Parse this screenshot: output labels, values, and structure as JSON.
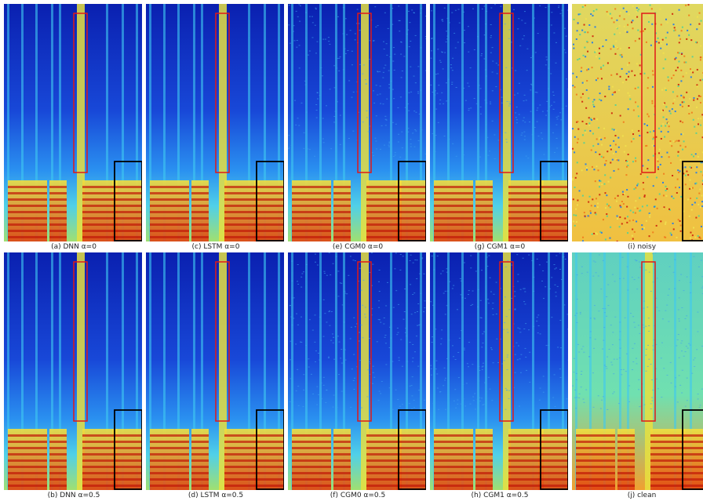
{
  "panels": [
    {
      "caption": "(a) DNN α=0"
    },
    {
      "caption": "(c) LSTM α=0"
    },
    {
      "caption": "(e) CGM0 α=0"
    },
    {
      "caption": "(g) CGM1 α=0"
    },
    {
      "caption": "(i) noisy"
    },
    {
      "caption": "(b) DNN α=0.5"
    },
    {
      "caption": "(d) LSTM α=0.5"
    },
    {
      "caption": "(f) CGM0 α=0.5"
    },
    {
      "caption": "(h) CGM1 α=0.5"
    },
    {
      "caption": "(j) clean"
    }
  ]
}
